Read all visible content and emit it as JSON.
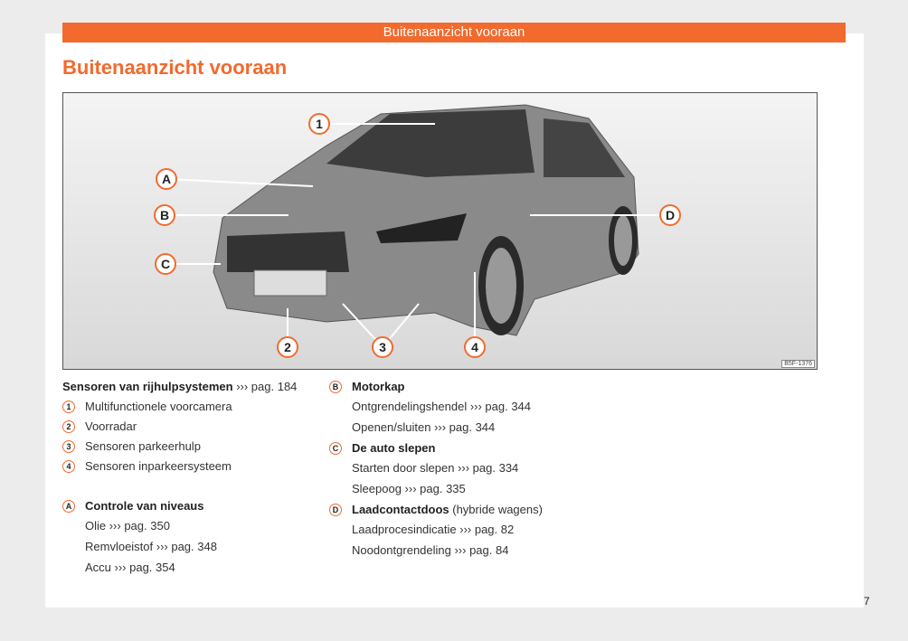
{
  "header": {
    "banner": "Buitenaanzicht vooraan",
    "title": "Buitenaanzicht vooraan"
  },
  "figure": {
    "code": "B5F-1376",
    "callouts": [
      "1",
      "2",
      "3",
      "4",
      "A",
      "B",
      "C",
      "D"
    ]
  },
  "left": {
    "heading": "Sensoren van rijhulpsystemen",
    "heading_ref": "››› pag. 184",
    "items": [
      {
        "n": "1",
        "t": "Multifunctionele voorcamera"
      },
      {
        "n": "2",
        "t": "Voorradar"
      },
      {
        "n": "3",
        "t": "Sensoren parkeerhulp"
      },
      {
        "n": "4",
        "t": "Sensoren inparkeersysteem"
      }
    ],
    "A": {
      "badge": "A",
      "title": "Controle van niveaus",
      "subs": [
        "Olie ››› pag. 350",
        "Remvloeistof ››› pag. 348",
        "Accu ››› pag. 354"
      ]
    }
  },
  "right": {
    "B": {
      "badge": "B",
      "title": "Motorkap",
      "subs": [
        "Ontgrendelingshendel ››› pag. 344",
        "Openen/sluiten ››› pag. 344"
      ]
    },
    "C": {
      "badge": "C",
      "title": "De auto slepen",
      "subs": [
        "Starten door slepen ››› pag. 334",
        "Sleepoog ››› pag. 335"
      ]
    },
    "D": {
      "badge": "D",
      "title": "Laadcontactdoos",
      "title_extra": " (hybride wagens)",
      "subs": [
        "Laadprocesindicatie ››› pag. 82",
        "Noodontgrendeling ››› pag. 84"
      ]
    }
  },
  "page_number": "7",
  "colors": {
    "accent": "#f26a2e"
  }
}
